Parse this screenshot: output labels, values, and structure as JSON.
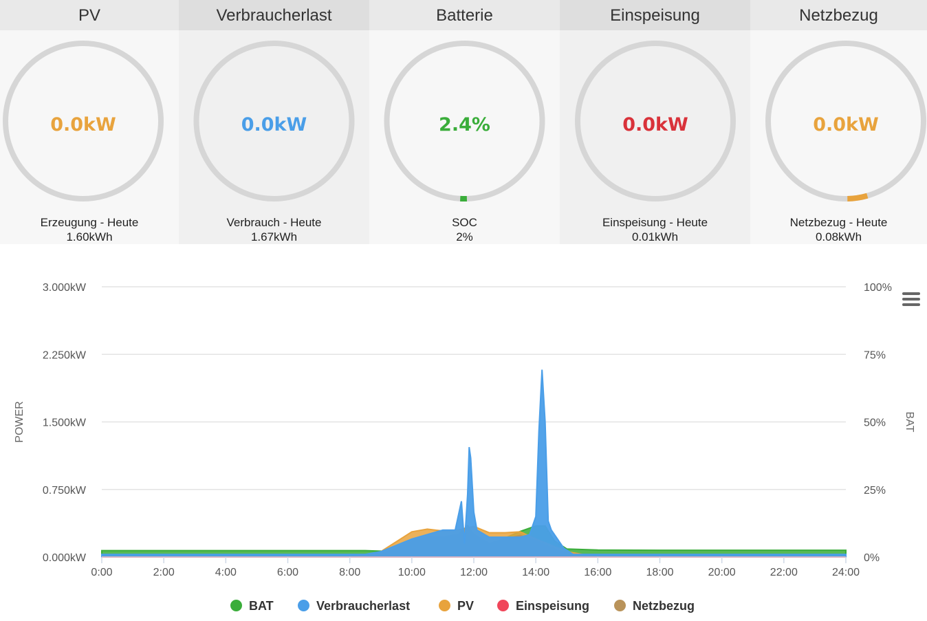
{
  "panels": [
    {
      "title": "PV",
      "value": "0.0kW",
      "value_color": "#e8a33d",
      "footer_label": "Erzeugung - Heute",
      "footer_value": "1.60kWh",
      "head_bg": "#e9e9e9",
      "body_bg": "#f7f7f7",
      "arc_fraction": 0,
      "arc_color": "#e8a33d"
    },
    {
      "title": "Verbraucherlast",
      "value": "0.0kW",
      "value_color": "#4a9ee8",
      "footer_label": "Verbrauch - Heute",
      "footer_value": "1.67kWh",
      "head_bg": "#dedede",
      "body_bg": "#f0f0f0",
      "arc_fraction": 0,
      "arc_color": "#4a9ee8"
    },
    {
      "title": "Batterie",
      "value": "2.4%",
      "value_color": "#3aad3a",
      "footer_label": "SOC",
      "footer_value": "2%",
      "head_bg": "#e9e9e9",
      "body_bg": "#f7f7f7",
      "arc_fraction": 0.024,
      "arc_color": "#3aad3a"
    },
    {
      "title": "Einspeisung",
      "value": "0.0kW",
      "value_color": "#d9323a",
      "footer_label": "Einspeisung - Heute",
      "footer_value": "0.01kWh",
      "head_bg": "#dedede",
      "body_bg": "#f0f0f0",
      "arc_fraction": 0,
      "arc_color": "#d9323a"
    },
    {
      "title": "Netzbezug",
      "value": "0.0kW",
      "value_color": "#e8a33d",
      "footer_label": "Netzbezug - Heute",
      "footer_value": "0.08kWh",
      "head_bg": "#e9e9e9",
      "body_bg": "#f7f7f7",
      "arc_fraction": 0.04,
      "arc_color": "#e8a33d"
    }
  ],
  "chart_data": {
    "type": "area",
    "y_left": {
      "label": "POWER",
      "unit": "kW",
      "range": [
        0,
        3
      ],
      "ticks": [
        "0.000kW",
        "0.750kW",
        "1.500kW",
        "2.250kW",
        "3.000kW"
      ],
      "tick_values": [
        0,
        0.75,
        1.5,
        2.25,
        3
      ]
    },
    "y_right": {
      "label": "BAT",
      "range": [
        0,
        100
      ],
      "ticks": [
        "0%",
        "25%",
        "50%",
        "75%",
        "100%"
      ],
      "tick_values": [
        0,
        25,
        50,
        75,
        100
      ]
    },
    "x_axis": {
      "range": [
        0,
        24
      ],
      "ticks": [
        "0:00",
        "2:00",
        "4:00",
        "6:00",
        "8:00",
        "10:00",
        "12:00",
        "14:00",
        "16:00",
        "18:00",
        "20:00",
        "22:00",
        "24:00"
      ],
      "tick_values": [
        0,
        2,
        4,
        6,
        8,
        10,
        12,
        14,
        16,
        18,
        20,
        22,
        24
      ]
    },
    "grid": true,
    "legend_position": "bottom-center",
    "series": [
      {
        "name": "BAT",
        "color": "#3aad3a",
        "axis": "right",
        "x": [
          0,
          8.5,
          9,
          10,
          11,
          11.5,
          12,
          12.5,
          13,
          13.5,
          14,
          14.3,
          14.6,
          15,
          15.5,
          16,
          18,
          20,
          22,
          24
        ],
        "y": [
          2.4,
          2.4,
          2.2,
          1.8,
          1.5,
          1.5,
          1.9,
          3.5,
          7,
          9.5,
          11.5,
          11.5,
          6,
          3,
          2.8,
          2.6,
          2.5,
          2.5,
          2.5,
          2.5
        ]
      },
      {
        "name": "Verbraucherlast",
        "color": "#4a9ee8",
        "axis": "left",
        "x": [
          0,
          8.5,
          9,
          10,
          11,
          11.4,
          11.6,
          11.7,
          11.8,
          11.85,
          11.9,
          12.0,
          12.1,
          12.5,
          13,
          13.5,
          13.8,
          14.0,
          14.1,
          14.2,
          14.3,
          14.4,
          14.5,
          14.9,
          15.2,
          16,
          24
        ],
        "y": [
          0.03,
          0.03,
          0.06,
          0.2,
          0.3,
          0.3,
          0.62,
          0.15,
          0.7,
          1.22,
          1.1,
          0.5,
          0.3,
          0.22,
          0.22,
          0.22,
          0.25,
          0.45,
          1.4,
          2.08,
          1.5,
          0.4,
          0.3,
          0.1,
          0.03,
          0.03,
          0.03
        ]
      },
      {
        "name": "PV",
        "color": "#e8a33d",
        "axis": "left",
        "x": [
          0,
          8.0,
          8.5,
          9,
          9.5,
          10,
          10.5,
          11,
          11.5,
          12,
          12.5,
          13,
          13.5,
          14,
          14.5,
          15,
          15.5,
          16,
          24
        ],
        "y": [
          0,
          0,
          0.02,
          0.06,
          0.17,
          0.28,
          0.31,
          0.29,
          0.3,
          0.34,
          0.27,
          0.27,
          0.28,
          0.2,
          0.13,
          0.06,
          0.03,
          0,
          0
        ]
      },
      {
        "name": "Einspeisung",
        "color": "#f0465a",
        "axis": "left",
        "x": [
          0,
          24
        ],
        "y": [
          0,
          0
        ]
      },
      {
        "name": "Netzbezug",
        "color": "#b9935a",
        "axis": "left",
        "x": [
          0,
          8.8,
          9.5,
          10,
          10.5,
          11,
          11.5,
          11.8,
          12,
          12.5,
          13,
          13.5,
          14,
          14.5,
          15,
          15.5,
          24
        ],
        "y": [
          0,
          0,
          0.1,
          0.18,
          0.22,
          0.22,
          0.25,
          0.35,
          0.25,
          0.15,
          0.2,
          0.24,
          0.18,
          0.1,
          0.04,
          0,
          0
        ]
      }
    ]
  }
}
